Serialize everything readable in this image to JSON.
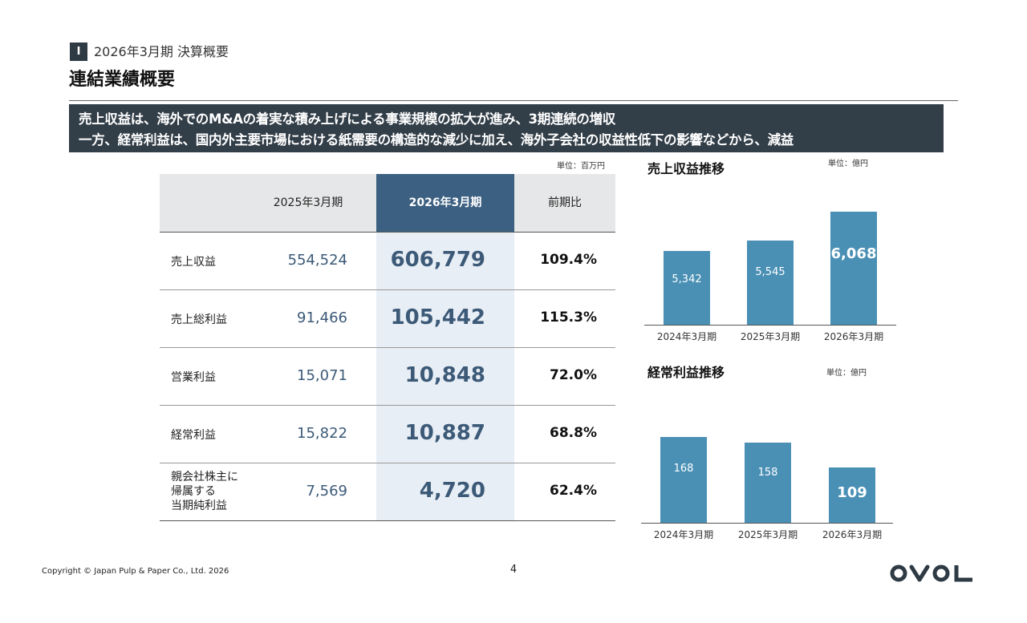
{
  "header": {
    "section_number": "I",
    "section_title": "2026年3月期 決算概要",
    "page_title": "連結業績概要"
  },
  "banner": {
    "line1": "売上収益は、海外でのM&Aの着実な積み上げによる事業規模の拡大が進み、3期連続の増収",
    "line2": "一方、経常利益は、国内外主要市場における紙需要の構造的な減少に加え、海外子会社の収益性低下の影響などから、減益"
  },
  "table": {
    "unit": "単位：百万円",
    "headers": [
      "",
      "2025年3月期",
      "2026年3月期",
      "前期比"
    ],
    "rows": [
      {
        "label": "売上収益",
        "prev": "554,524",
        "current": "606,779",
        "ratio": "109.4%"
      },
      {
        "label": "売上総利益",
        "prev": "91,466",
        "current": "105,442",
        "ratio": "115.3%"
      },
      {
        "label": "営業利益",
        "prev": "15,071",
        "current": "10,848",
        "ratio": "72.0%"
      },
      {
        "label": "経常利益",
        "prev": "15,822",
        "current": "10,887",
        "ratio": "68.8%"
      },
      {
        "label_lines": [
          "親会社株主に",
          "帰属する",
          "当期純利益"
        ],
        "prev": "7,569",
        "current": "4,720",
        "ratio": "62.4%"
      }
    ]
  },
  "chart_data": [
    {
      "type": "bar",
      "title": "売上収益推移",
      "unit": "単位：億円",
      "categories": [
        "2024年3月期",
        "2025年3月期",
        "2026年3月期"
      ],
      "values": [
        5342,
        5545,
        6068
      ],
      "value_labels": [
        "5,342",
        "5,545",
        "6,068"
      ],
      "ylim": [
        4000,
        6200
      ],
      "color": "#4a90b5"
    },
    {
      "type": "bar",
      "title": "経常利益推移",
      "unit": "単位：億円",
      "categories": [
        "2024年3月期",
        "2025年3月期",
        "2026年3月期"
      ],
      "values": [
        168,
        158,
        109
      ],
      "value_labels": [
        "168",
        "158",
        "109"
      ],
      "ylim": [
        0,
        175
      ],
      "color": "#4a90b5"
    }
  ],
  "footer": {
    "copyright": "Copyright © Japan Pulp & Paper Co., Ltd. 2026",
    "page_number": "4",
    "logo_text": "OVOL"
  },
  "colors": {
    "banner_bg": "#323e48",
    "highlight_header": "#3c6081",
    "highlight_column": "#e8eef5",
    "bar": "#4a90b5",
    "value_text": "#3c5a78"
  }
}
